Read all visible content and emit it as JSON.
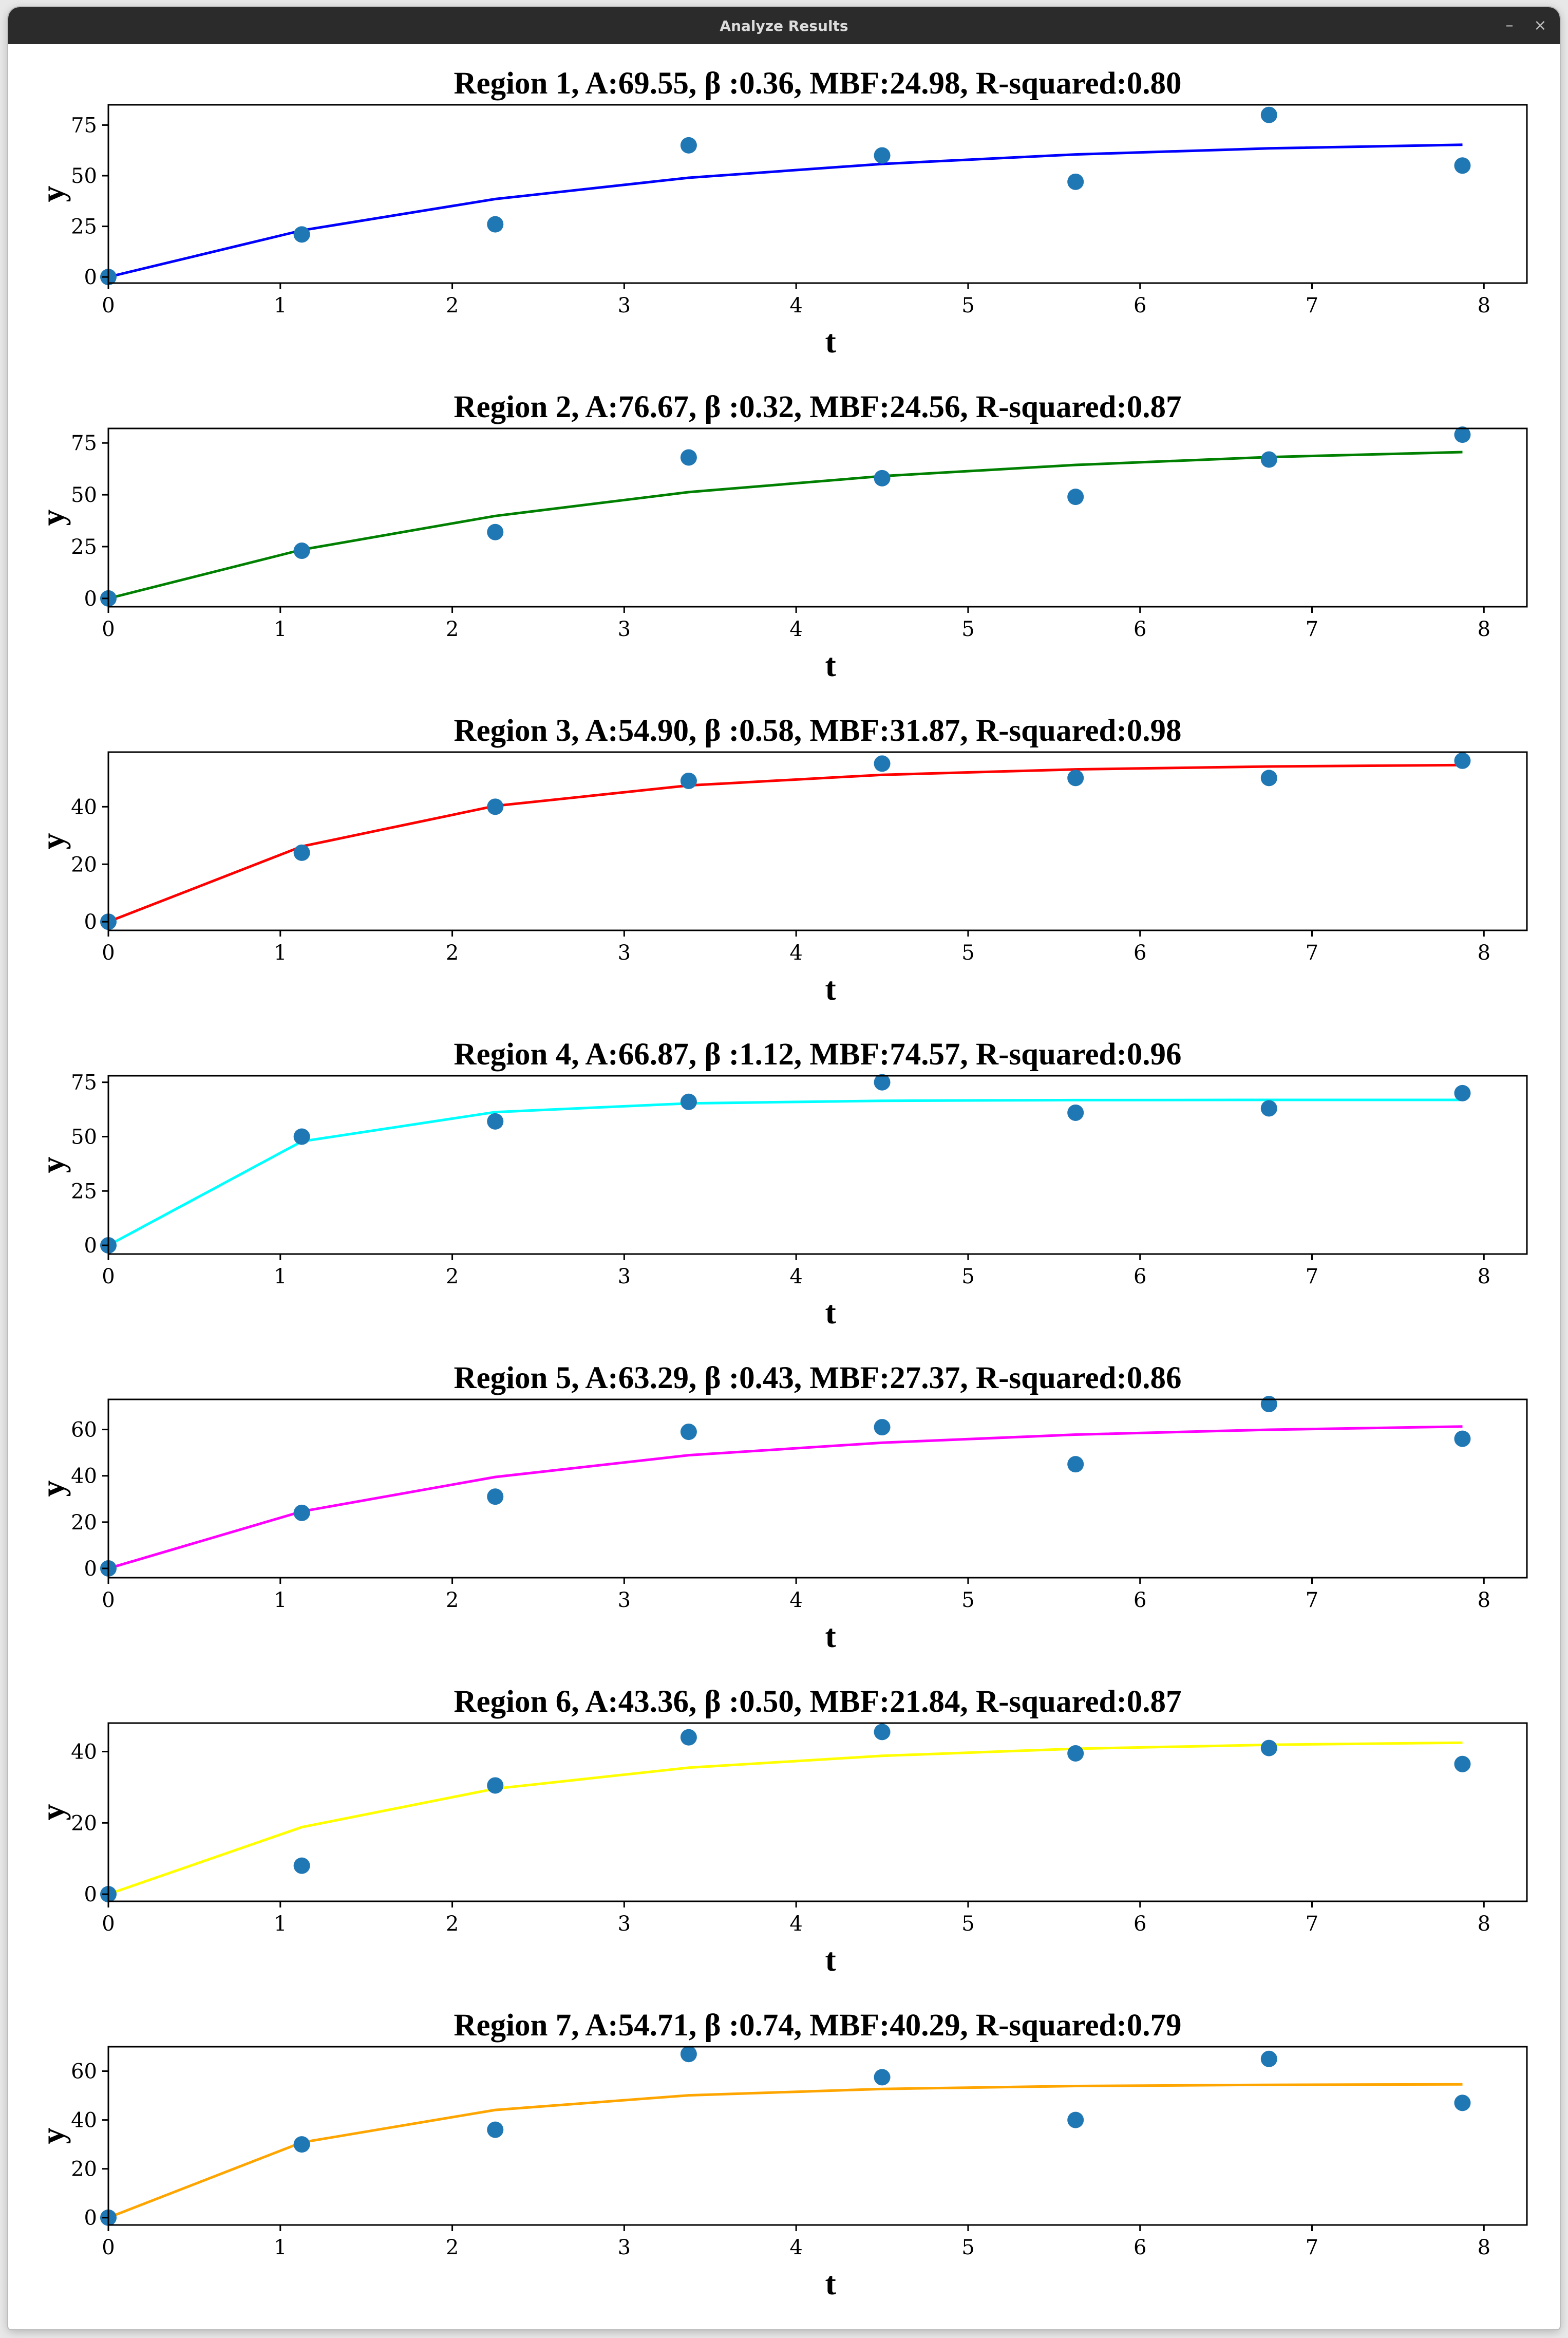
{
  "window": {
    "title": "Analyze Results",
    "minimize_label": "–",
    "close_label": "×"
  },
  "colors": {
    "point": "#1f77b4",
    "titlebar": "#2b2b2b"
  },
  "chart_data": [
    {
      "type": "line",
      "title": "Region 1, A:69.55, β :0.36, MBF:24.98, R-squared:0.80",
      "xlabel": "t",
      "ylabel": "y",
      "xlim": [
        0,
        8.25
      ],
      "ylim": [
        -3,
        85
      ],
      "xticks": [
        0,
        1,
        2,
        3,
        4,
        5,
        6,
        7,
        8
      ],
      "yticks": [
        0,
        25,
        50,
        75
      ],
      "line_color": "#0000ff",
      "x": [
        0,
        1.125,
        2.25,
        3.375,
        4.5,
        5.625,
        6.75,
        7.875
      ],
      "series": [
        {
          "kind": "scatter",
          "values": [
            0,
            21,
            26,
            65,
            60,
            47,
            80,
            55
          ]
        },
        {
          "kind": "fit",
          "values": [
            0,
            23,
            38.5,
            49,
            55.8,
            60.5,
            63.5,
            65.3
          ]
        }
      ]
    },
    {
      "type": "line",
      "title": "Region 2, A:76.67, β :0.32, MBF:24.56, R-squared:0.87",
      "xlabel": "t",
      "ylabel": "y",
      "xlim": [
        0,
        8.25
      ],
      "ylim": [
        -4,
        82
      ],
      "xticks": [
        0,
        1,
        2,
        3,
        4,
        5,
        6,
        7,
        8
      ],
      "yticks": [
        0,
        25,
        50,
        75
      ],
      "line_color": "#008000",
      "x": [
        0,
        1.125,
        2.25,
        3.375,
        4.5,
        5.625,
        6.75,
        7.875
      ],
      "series": [
        {
          "kind": "scatter",
          "values": [
            0,
            23,
            32,
            68,
            58,
            49,
            67,
            79
          ]
        },
        {
          "kind": "fit",
          "values": [
            0,
            23.5,
            39.8,
            51.3,
            59,
            64.4,
            68.2,
            70.6
          ]
        }
      ]
    },
    {
      "type": "line",
      "title": "Region 3, A:54.90, β :0.58, MBF:31.87, R-squared:0.98",
      "xlabel": "t",
      "ylabel": "y",
      "xlim": [
        0,
        8.25
      ],
      "ylim": [
        -3,
        59
      ],
      "xticks": [
        0,
        1,
        2,
        3,
        4,
        5,
        6,
        7,
        8
      ],
      "yticks": [
        0,
        20,
        40
      ],
      "line_color": "#ff0000",
      "x": [
        0,
        1.125,
        2.25,
        3.375,
        4.5,
        5.625,
        6.75,
        7.875
      ],
      "series": [
        {
          "kind": "scatter",
          "values": [
            0,
            24,
            40,
            49,
            55,
            50,
            50,
            56
          ]
        },
        {
          "kind": "fit",
          "values": [
            0,
            26.2,
            40.3,
            47.4,
            51.1,
            53,
            54,
            54.5
          ]
        }
      ]
    },
    {
      "type": "line",
      "title": "Region 4, A:66.87, β :1.12, MBF:74.57, R-squared:0.96",
      "xlabel": "t",
      "ylabel": "y",
      "xlim": [
        0,
        8.25
      ],
      "ylim": [
        -4,
        78
      ],
      "xticks": [
        0,
        1,
        2,
        3,
        4,
        5,
        6,
        7,
        8
      ],
      "yticks": [
        0,
        25,
        50,
        75
      ],
      "line_color": "#00ffff",
      "x": [
        0,
        1.125,
        2.25,
        3.375,
        4.5,
        5.625,
        6.75,
        7.875
      ],
      "series": [
        {
          "kind": "scatter",
          "values": [
            0,
            50,
            57,
            66,
            75,
            61,
            63,
            70
          ]
        },
        {
          "kind": "fit",
          "values": [
            0,
            47.8,
            61.3,
            65.3,
            66.5,
            66.8,
            66.9,
            66.9
          ]
        }
      ]
    },
    {
      "type": "line",
      "title": "Region 5, A:63.29, β :0.43, MBF:27.37, R-squared:0.86",
      "xlabel": "t",
      "ylabel": "y",
      "xlim": [
        0,
        8.25
      ],
      "ylim": [
        -4,
        73
      ],
      "xticks": [
        0,
        1,
        2,
        3,
        4,
        5,
        6,
        7,
        8
      ],
      "yticks": [
        0,
        20,
        40,
        60
      ],
      "line_color": "#ff00ff",
      "x": [
        0,
        1.125,
        2.25,
        3.375,
        4.5,
        5.625,
        6.75,
        7.875
      ],
      "series": [
        {
          "kind": "scatter",
          "values": [
            0,
            24,
            31,
            59,
            61,
            45,
            71,
            56
          ]
        },
        {
          "kind": "fit",
          "values": [
            0,
            24.6,
            39.5,
            48.9,
            54.3,
            57.8,
            59.9,
            61.3
          ]
        }
      ]
    },
    {
      "type": "line",
      "title": "Region 6, A:43.36, β :0.50, MBF:21.84, R-squared:0.87",
      "xlabel": "t",
      "ylabel": "y",
      "xlim": [
        0,
        8.25
      ],
      "ylim": [
        -2,
        48
      ],
      "xticks": [
        0,
        1,
        2,
        3,
        4,
        5,
        6,
        7,
        8
      ],
      "yticks": [
        0,
        20,
        40
      ],
      "line_color": "#ffff00",
      "x": [
        0,
        1.125,
        2.25,
        3.375,
        4.5,
        5.625,
        6.75,
        7.875
      ],
      "series": [
        {
          "kind": "scatter",
          "values": [
            0,
            8,
            30.5,
            44,
            45.5,
            39.5,
            41,
            36.5
          ]
        },
        {
          "kind": "fit",
          "values": [
            0,
            18.8,
            29.6,
            35.5,
            38.8,
            40.8,
            41.9,
            42.5
          ]
        }
      ]
    },
    {
      "type": "line",
      "title": "Region 7, A:54.71, β :0.74, MBF:40.29, R-squared:0.79",
      "xlabel": "t",
      "ylabel": "y",
      "xlim": [
        0,
        8.25
      ],
      "ylim": [
        -3,
        70
      ],
      "xticks": [
        0,
        1,
        2,
        3,
        4,
        5,
        6,
        7,
        8
      ],
      "yticks": [
        0,
        20,
        40,
        60
      ],
      "line_color": "#ffa500",
      "x": [
        0,
        1.125,
        2.25,
        3.375,
        4.5,
        5.625,
        6.75,
        7.875
      ],
      "series": [
        {
          "kind": "scatter",
          "values": [
            0,
            30,
            36,
            67,
            57.5,
            40,
            65,
            47
          ]
        },
        {
          "kind": "fit",
          "values": [
            0,
            30.8,
            44.1,
            50.1,
            52.7,
            53.9,
            54.4,
            54.6
          ]
        }
      ]
    }
  ]
}
